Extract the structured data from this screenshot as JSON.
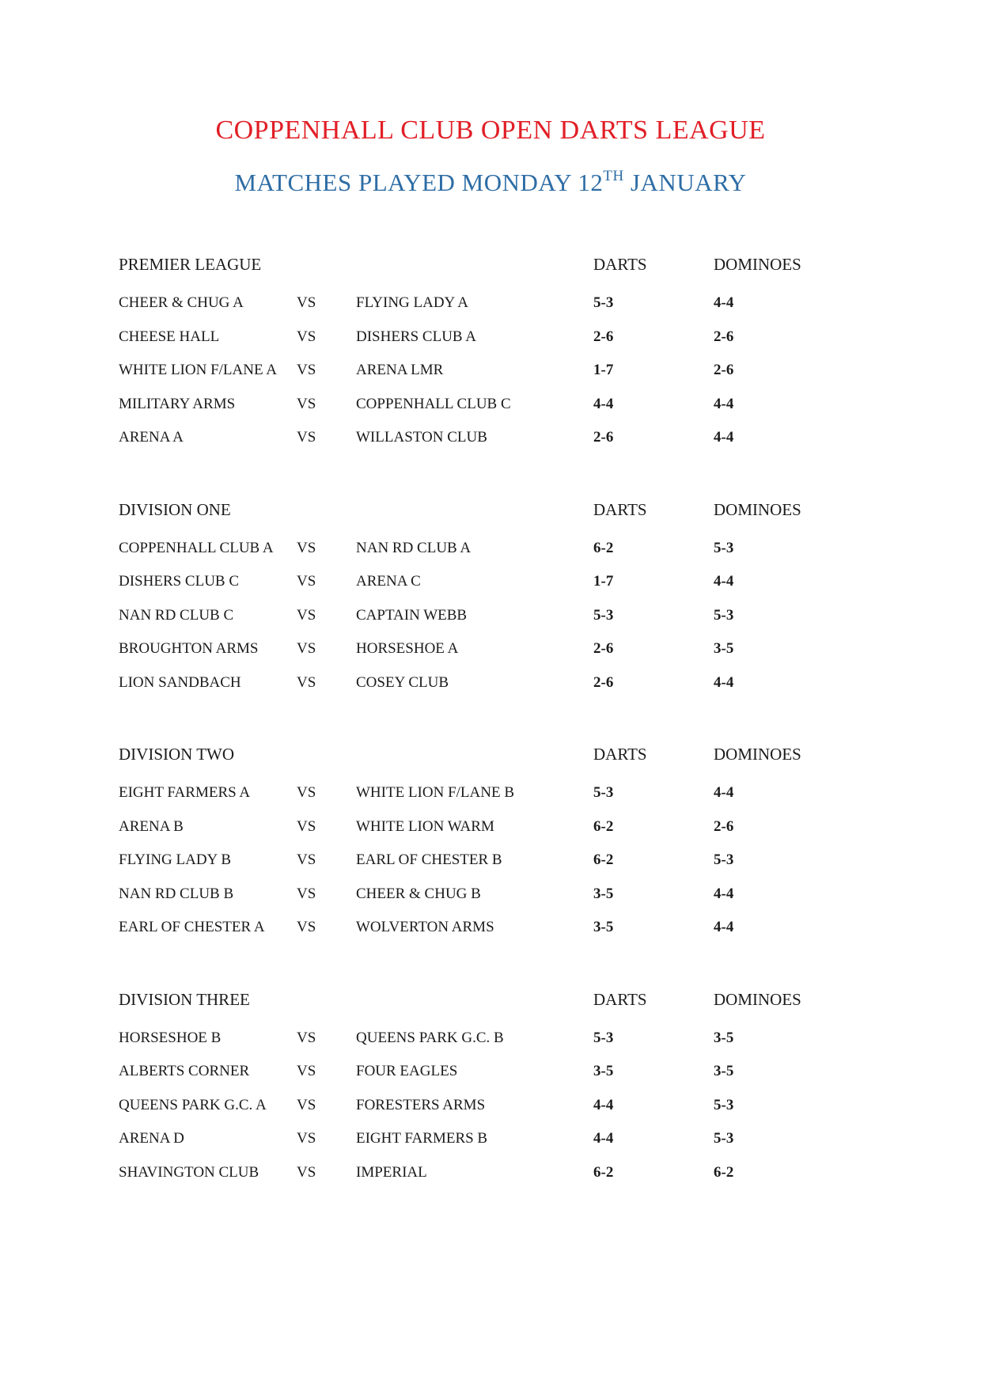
{
  "document": {
    "title": "COPPENHALL CLUB OPEN DARTS LEAGUE",
    "subtitle": {
      "prefix": "MATCHES PLAYED MONDAY 12",
      "ordinal": "TH",
      "suffix": " JANUARY"
    },
    "colors": {
      "title_red": "#e11e26",
      "subtitle_blue": "#2e6da5",
      "body_text": "#1b1b1b"
    }
  },
  "table": {
    "vs_label": "VS",
    "score_columns": [
      "DARTS",
      "DOMINOES"
    ]
  },
  "sections": [
    {
      "name": "PREMIER LEAGUE",
      "matches": [
        {
          "home": "CHEER & CHUG A",
          "away": "FLYING LADY A",
          "darts": "5-3",
          "dominoes": "4-4"
        },
        {
          "home": "CHEESE HALL",
          "away": "DISHERS CLUB A",
          "darts": "2-6",
          "dominoes": "2-6"
        },
        {
          "home": "WHITE LION F/LANE A",
          "away": "ARENA LMR",
          "darts": "1-7",
          "dominoes": "2-6"
        },
        {
          "home": "MILITARY ARMS",
          "away": "COPPENHALL CLUB C",
          "darts": "4-4",
          "dominoes": "4-4"
        },
        {
          "home": "ARENA A",
          "away": "WILLASTON CLUB",
          "darts": "2-6",
          "dominoes": "4-4"
        }
      ]
    },
    {
      "name": "DIVISION ONE",
      "matches": [
        {
          "home": "COPPENHALL CLUB A",
          "away": "NAN RD CLUB A",
          "darts": "6-2",
          "dominoes": "5-3"
        },
        {
          "home": "DISHERS CLUB C",
          "away": "ARENA C",
          "darts": "1-7",
          "dominoes": "4-4"
        },
        {
          "home": "NAN RD CLUB C",
          "away": "CAPTAIN WEBB",
          "darts": "5-3",
          "dominoes": "5-3"
        },
        {
          "home": "BROUGHTON ARMS",
          "away": "HORSESHOE A",
          "darts": "2-6",
          "dominoes": "3-5"
        },
        {
          "home": "LION SANDBACH",
          "away": "COSEY CLUB",
          "darts": "2-6",
          "dominoes": "4-4"
        }
      ]
    },
    {
      "name": "DIVISION TWO",
      "matches": [
        {
          "home": "EIGHT FARMERS A",
          "away": "WHITE LION F/LANE B",
          "darts": "5-3",
          "dominoes": "4-4"
        },
        {
          "home": "ARENA B",
          "away": "WHITE LION WARM",
          "darts": "6-2",
          "dominoes": "2-6"
        },
        {
          "home": "FLYING LADY B",
          "away": "EARL OF CHESTER B",
          "darts": "6-2",
          "dominoes": "5-3"
        },
        {
          "home": "NAN RD CLUB B",
          "away": "CHEER & CHUG B",
          "darts": "3-5",
          "dominoes": "4-4"
        },
        {
          "home": "EARL OF CHESTER A",
          "away": "WOLVERTON ARMS",
          "darts": "3-5",
          "dominoes": "4-4"
        }
      ]
    },
    {
      "name": "DIVISION THREE",
      "matches": [
        {
          "home": "HORSESHOE B",
          "away": "QUEENS PARK G.C. B",
          "darts": "5-3",
          "dominoes": "3-5"
        },
        {
          "home": "ALBERTS CORNER",
          "away": "FOUR EAGLES",
          "darts": "3-5",
          "dominoes": "3-5"
        },
        {
          "home": "QUEENS PARK G.C. A",
          "away": "FORESTERS ARMS",
          "darts": "4-4",
          "dominoes": "5-3"
        },
        {
          "home": "ARENA D",
          "away": "EIGHT FARMERS B",
          "darts": "4-4",
          "dominoes": "5-3"
        },
        {
          "home": "SHAVINGTON CLUB",
          "away": "IMPERIAL",
          "darts": "6-2",
          "dominoes": "6-2"
        }
      ]
    }
  ]
}
